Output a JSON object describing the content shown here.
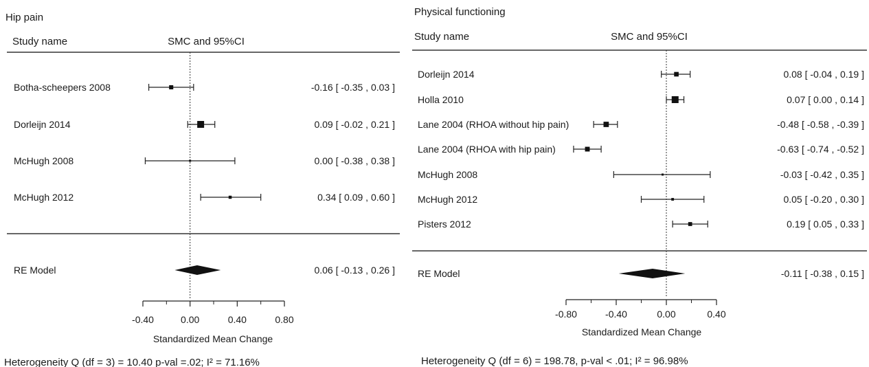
{
  "chart_data": [
    {
      "type": "forest",
      "title": "Hip pain",
      "column_headers": {
        "study": "Study name",
        "effect": "SMC and 95%CI"
      },
      "studies": [
        {
          "name": "Botha-scheepers 2008",
          "estimate": -0.16,
          "lower": -0.35,
          "upper": 0.03,
          "label": "-0.16 [ -0.35 , 0.03 ]"
        },
        {
          "name": "Dorleijn 2014",
          "estimate": 0.09,
          "lower": -0.02,
          "upper": 0.21,
          "label": "0.09 [ -0.02 , 0.21 ]"
        },
        {
          "name": "McHugh 2008",
          "estimate": 0.0,
          "lower": -0.38,
          "upper": 0.38,
          "label": "0.00 [ -0.38 , 0.38 ]"
        },
        {
          "name": "McHugh 2012",
          "estimate": 0.34,
          "lower": 0.09,
          "upper": 0.6,
          "label": "0.34 [ 0.09 , 0.60 ]"
        }
      ],
      "summary": {
        "name": "RE Model",
        "estimate": 0.06,
        "lower": -0.13,
        "upper": 0.26,
        "label": "0.06 [ -0.13 , 0.26 ]"
      },
      "xlim": [
        -0.4,
        0.8
      ],
      "xticks": [
        -0.4,
        0.0,
        0.4,
        0.8
      ],
      "xtick_labels": [
        "-0.40",
        "0.00",
        "0.40",
        "0.80"
      ],
      "xlabel": "Standardized Mean Change",
      "heterogeneity": "Heterogeneity Q (df = 3) = 10.40 p-val =.02; I² = 71.16%"
    },
    {
      "type": "forest",
      "title": "Physical functioning",
      "column_headers": {
        "study": "Study name",
        "effect": "SMC and 95%CI"
      },
      "studies": [
        {
          "name": "Dorleijn 2014",
          "estimate": 0.08,
          "lower": -0.04,
          "upper": 0.19,
          "label": "0.08 [ -0.04 , 0.19 ]"
        },
        {
          "name": "Holla 2010",
          "estimate": 0.07,
          "lower": 0.0,
          "upper": 0.14,
          "label": "0.07 [ 0.00 , 0.14 ]"
        },
        {
          "name": "Lane 2004 (RHOA without hip pain)",
          "estimate": -0.48,
          "lower": -0.58,
          "upper": -0.39,
          "label": "-0.48 [ -0.58 , -0.39 ]"
        },
        {
          "name": "Lane 2004 (RHOA with hip pain)",
          "estimate": -0.63,
          "lower": -0.74,
          "upper": -0.52,
          "label": "-0.63 [ -0.74 , -0.52 ]"
        },
        {
          "name": "McHugh 2008",
          "estimate": -0.03,
          "lower": -0.42,
          "upper": 0.35,
          "label": "-0.03 [ -0.42 , 0.35 ]"
        },
        {
          "name": "McHugh 2012",
          "estimate": 0.05,
          "lower": -0.2,
          "upper": 0.3,
          "label": "0.05 [ -0.20 , 0.30 ]"
        },
        {
          "name": "Pisters 2012",
          "estimate": 0.19,
          "lower": 0.05,
          "upper": 0.33,
          "label": "0.19 [ 0.05 , 0.33 ]"
        }
      ],
      "summary": {
        "name": "RE Model",
        "estimate": -0.11,
        "lower": -0.38,
        "upper": 0.15,
        "label": "-0.11 [ -0.38 , 0.15 ]"
      },
      "xlim": [
        -0.8,
        0.4
      ],
      "xticks": [
        -0.8,
        -0.4,
        0.0,
        0.4
      ],
      "xtick_labels": [
        "-0.80",
        "-0.40",
        "0.00",
        "0.40"
      ],
      "xlabel": "Standardized Mean Change",
      "heterogeneity": "Heterogeneity Q (df = 6) = 198.78, p-val < .01; I² = 96.98%"
    }
  ]
}
